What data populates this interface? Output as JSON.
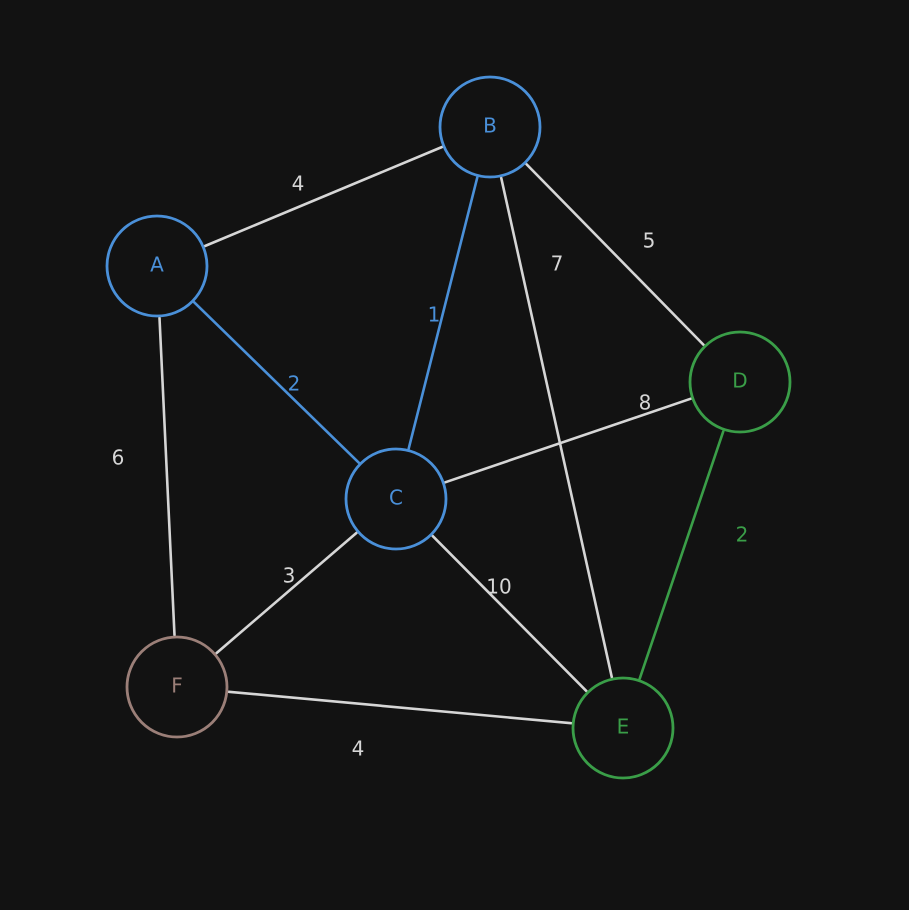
{
  "colors": {
    "background": "#121212",
    "blue": "#4a90d9",
    "green": "#3a9e48",
    "brown": "#9b7f78",
    "gray": "#d6d6d6"
  },
  "nodes": [
    {
      "id": "A",
      "label": "A",
      "color": "blue"
    },
    {
      "id": "B",
      "label": "B",
      "color": "blue"
    },
    {
      "id": "C",
      "label": "C",
      "color": "blue"
    },
    {
      "id": "D",
      "label": "D",
      "color": "green"
    },
    {
      "id": "E",
      "label": "E",
      "color": "green"
    },
    {
      "id": "F",
      "label": "F",
      "color": "brown"
    }
  ],
  "edges": [
    {
      "from": "A",
      "to": "B",
      "weight": "4",
      "color": "gray"
    },
    {
      "from": "A",
      "to": "C",
      "weight": "2",
      "color": "blue"
    },
    {
      "from": "A",
      "to": "F",
      "weight": "6",
      "color": "gray"
    },
    {
      "from": "B",
      "to": "C",
      "weight": "1",
      "color": "blue"
    },
    {
      "from": "B",
      "to": "D",
      "weight": "5",
      "color": "gray"
    },
    {
      "from": "B",
      "to": "E",
      "weight": "7",
      "color": "gray"
    },
    {
      "from": "C",
      "to": "D",
      "weight": "8",
      "color": "gray"
    },
    {
      "from": "C",
      "to": "E",
      "weight": "10",
      "color": "gray"
    },
    {
      "from": "C",
      "to": "F",
      "weight": "3",
      "color": "gray"
    },
    {
      "from": "D",
      "to": "E",
      "weight": "2",
      "color": "green"
    },
    {
      "from": "F",
      "to": "E",
      "weight": "4",
      "color": "gray"
    }
  ]
}
